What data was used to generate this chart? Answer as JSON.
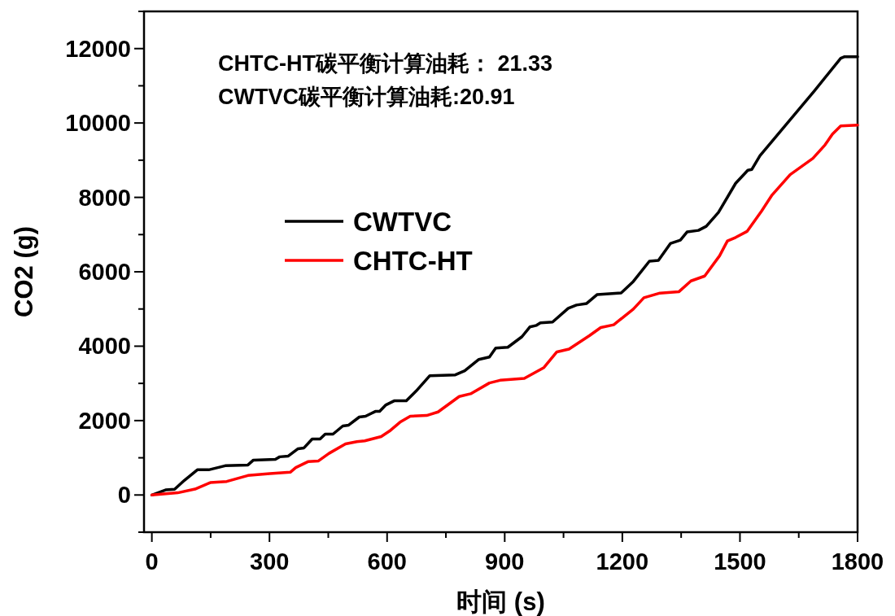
{
  "chart_data": {
    "type": "line",
    "xlabel": "时间 (s)",
    "ylabel": "CO2 (g)",
    "annotations": [
      "CHTC-HT碳平衡计算油耗： 21.33",
      "CWTVC碳平衡计算油耗:20.91"
    ],
    "xlim": [
      -20,
      1800
    ],
    "ylim": [
      -1000,
      13000
    ],
    "xticks": [
      0,
      {
        "value": 150,
        "label": null
      },
      300,
      {
        "value": 450,
        "label": null
      },
      600,
      {
        "value": 750,
        "label": null
      },
      900,
      {
        "value": 1050,
        "label": null
      },
      1200,
      {
        "value": 1350,
        "label": null
      },
      1500,
      {
        "value": 1650,
        "label": null
      },
      1800
    ],
    "yticks": [
      {
        "value": -1000,
        "label": null
      },
      0,
      {
        "value": 1000,
        "label": null
      },
      2000,
      {
        "value": 3000,
        "label": null
      },
      4000,
      {
        "value": 5000,
        "label": null
      },
      6000,
      {
        "value": 7000,
        "label": null
      },
      8000,
      {
        "value": 9000,
        "label": null
      },
      10000,
      {
        "value": 11000,
        "label": null
      },
      12000,
      {
        "value": 13000,
        "label": null
      }
    ],
    "grid": false,
    "legend": "left",
    "marker": "none",
    "line_style": "solid",
    "series": [
      {
        "name": "CWTVC",
        "color": "#000000",
        "x": [
          0,
          35,
          58,
          83,
          116,
          145,
          187,
          245,
          259,
          315,
          326,
          348,
          373,
          388,
          409,
          429,
          442,
          462,
          487,
          502,
          529,
          545,
          570,
          581,
          597,
          618,
          649,
          674,
          709,
          774,
          798,
          834,
          861,
          877,
          908,
          944,
          964,
          981,
          991,
          1022,
          1062,
          1083,
          1109,
          1136,
          1197,
          1228,
          1269,
          1292,
          1323,
          1348,
          1365,
          1394,
          1414,
          1445,
          1489,
          1520,
          1530,
          1551,
          1690,
          1757,
          1767,
          1800
        ],
        "values": [
          0,
          137,
          153,
          393,
          677,
          677,
          786,
          807,
          938,
          960,
          1026,
          1047,
          1244,
          1266,
          1506,
          1506,
          1636,
          1636,
          1855,
          1877,
          2095,
          2117,
          2247,
          2247,
          2422,
          2531,
          2531,
          2793,
          3208,
          3229,
          3338,
          3644,
          3709,
          3949,
          3971,
          4255,
          4517,
          4560,
          4626,
          4648,
          5019,
          5106,
          5149,
          5389,
          5433,
          5739,
          6284,
          6306,
          6764,
          6851,
          7070,
          7113,
          7222,
          7593,
          8379,
          8728,
          8750,
          9121,
          10866,
          11739,
          11783,
          11783
        ]
      },
      {
        "name": "CHTC-HT",
        "color": "#ff0000",
        "x": [
          0,
          66,
          110,
          149,
          191,
          245,
          301,
          353,
          367,
          398,
          425,
          452,
          494,
          523,
          543,
          585,
          606,
          633,
          659,
          701,
          730,
          784,
          813,
          861,
          888,
          950,
          1000,
          1033,
          1064,
          1116,
          1145,
          1178,
          1228,
          1255,
          1296,
          1344,
          1375,
          1410,
          1448,
          1468,
          1489,
          1518,
          1555,
          1582,
          1628,
          1686,
          1717,
          1736,
          1757,
          1800
        ],
        "values": [
          0,
          59,
          159,
          334,
          364,
          524,
          574,
          611,
          735,
          895,
          916,
          1119,
          1375,
          1434,
          1455,
          1571,
          1717,
          1957,
          2117,
          2138,
          2232,
          2647,
          2721,
          3011,
          3083,
          3136,
          3426,
          3847,
          3921,
          4283,
          4501,
          4576,
          4997,
          5302,
          5427,
          5462,
          5754,
          5885,
          6430,
          6830,
          6923,
          7085,
          7630,
          8066,
          8612,
          9048,
          9411,
          9703,
          9921,
          9943
        ]
      }
    ]
  }
}
